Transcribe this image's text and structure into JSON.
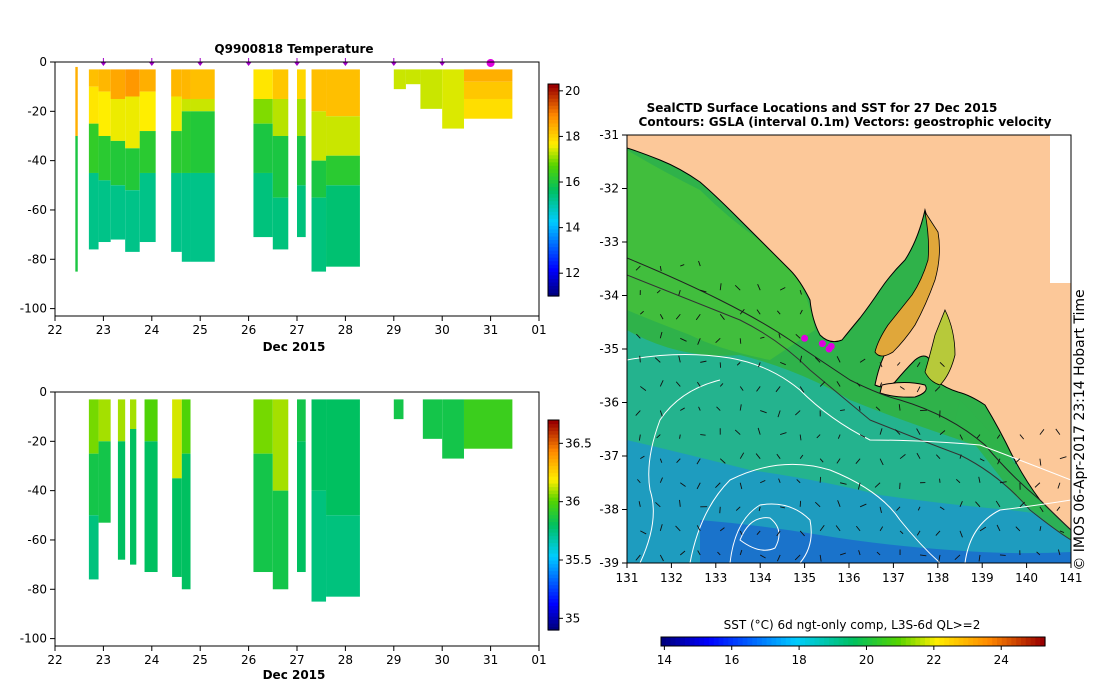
{
  "chart_data": [
    {
      "type": "heatmap",
      "id": "temp_section",
      "title": "Q9900818  Temperature",
      "xlabel": "Dec 2015",
      "ylabel": "",
      "x_ticks": [
        "22",
        "23",
        "24",
        "25",
        "26",
        "27",
        "28",
        "29",
        "30",
        "31",
        "01"
      ],
      "xlim": [
        22,
        32
      ],
      "y_ticks": [
        "0",
        "-20",
        "-40",
        "-60",
        "-80",
        "-100"
      ],
      "ylim": [
        -103,
        0
      ],
      "colorbar_ticks": [
        "12",
        "14",
        "16",
        "18",
        "20"
      ],
      "colorbar_range": [
        11,
        20.3
      ],
      "profile_markers": [
        23,
        24,
        25,
        26,
        27,
        28,
        29,
        30
      ],
      "highlight_marker": 31,
      "profiles": [
        {
          "x0": 22.42,
          "x1": 22.47,
          "dmin": -2,
          "dmax": -85,
          "layers": [
            {
              "to": -30,
              "v": 18.5
            },
            {
              "to": -85,
              "v": 16.0
            }
          ]
        },
        {
          "x0": 22.7,
          "x1": 22.9,
          "dmin": -3,
          "dmax": -76,
          "layers": [
            {
              "to": -10,
              "v": 18.3
            },
            {
              "to": -25,
              "v": 17.8
            },
            {
              "to": -45,
              "v": 16.3
            },
            {
              "to": -76,
              "v": 15.3
            }
          ]
        },
        {
          "x0": 22.9,
          "x1": 23.15,
          "dmin": -3,
          "dmax": -73,
          "layers": [
            {
              "to": -12,
              "v": 18.4
            },
            {
              "to": -30,
              "v": 17.7
            },
            {
              "to": -48,
              "v": 16.2
            },
            {
              "to": -73,
              "v": 15.3
            }
          ]
        },
        {
          "x0": 23.15,
          "x1": 23.45,
          "dmin": -3,
          "dmax": -72,
          "layers": [
            {
              "to": -15,
              "v": 18.6
            },
            {
              "to": -32,
              "v": 17.6
            },
            {
              "to": -50,
              "v": 16.1
            },
            {
              "to": -72,
              "v": 15.3
            }
          ]
        },
        {
          "x0": 23.45,
          "x1": 23.75,
          "dmin": -3,
          "dmax": -77,
          "layers": [
            {
              "to": -14,
              "v": 18.8
            },
            {
              "to": -35,
              "v": 17.6
            },
            {
              "to": -52,
              "v": 16.1
            },
            {
              "to": -77,
              "v": 15.3
            }
          ]
        },
        {
          "x0": 23.75,
          "x1": 24.08,
          "dmin": -3,
          "dmax": -73,
          "layers": [
            {
              "to": -12,
              "v": 18.5
            },
            {
              "to": -28,
              "v": 17.7
            },
            {
              "to": -45,
              "v": 16.2
            },
            {
              "to": -73,
              "v": 15.3
            }
          ]
        },
        {
          "x0": 24.4,
          "x1": 24.62,
          "dmin": -3,
          "dmax": -77,
          "layers": [
            {
              "to": -14,
              "v": 18.4
            },
            {
              "to": -28,
              "v": 17.6
            },
            {
              "to": -45,
              "v": 16.2
            },
            {
              "to": -77,
              "v": 15.3
            }
          ]
        },
        {
          "x0": 24.62,
          "x1": 24.8,
          "dmin": -3,
          "dmax": -81,
          "layers": [
            {
              "to": -15,
              "v": 18.4
            },
            {
              "to": -20,
              "v": 17.4
            },
            {
              "to": -45,
              "v": 16.2
            },
            {
              "to": -81,
              "v": 15.3
            }
          ]
        },
        {
          "x0": 24.8,
          "x1": 25.3,
          "dmin": -3,
          "dmax": -81,
          "layers": [
            {
              "to": -15,
              "v": 18.3
            },
            {
              "to": -20,
              "v": 17.4
            },
            {
              "to": -45,
              "v": 16.1
            },
            {
              "to": -81,
              "v": 15.3
            }
          ]
        },
        {
          "x0": 26.1,
          "x1": 26.5,
          "dmin": -3,
          "dmax": -71,
          "layers": [
            {
              "to": -15,
              "v": 17.8
            },
            {
              "to": -25,
              "v": 17.0
            },
            {
              "to": -45,
              "v": 16.0
            },
            {
              "to": -71,
              "v": 15.4
            }
          ]
        },
        {
          "x0": 26.5,
          "x1": 26.82,
          "dmin": -3,
          "dmax": -76,
          "layers": [
            {
              "to": -15,
              "v": 18.2
            },
            {
              "to": -30,
              "v": 17.3
            },
            {
              "to": -55,
              "v": 16.0
            },
            {
              "to": -76,
              "v": 15.4
            }
          ]
        },
        {
          "x0": 27.0,
          "x1": 27.18,
          "dmin": -3,
          "dmax": -71,
          "layers": [
            {
              "to": -15,
              "v": 18.0
            },
            {
              "to": -30,
              "v": 17.2
            },
            {
              "to": -50,
              "v": 16.0
            },
            {
              "to": -71,
              "v": 15.4
            }
          ]
        },
        {
          "x0": 27.3,
          "x1": 27.6,
          "dmin": -3,
          "dmax": -85,
          "layers": [
            {
              "to": -20,
              "v": 18.3
            },
            {
              "to": -40,
              "v": 17.4
            },
            {
              "to": -55,
              "v": 16.0
            },
            {
              "to": -85,
              "v": 15.4
            }
          ]
        },
        {
          "x0": 27.6,
          "x1": 28.3,
          "dmin": -3,
          "dmax": -83,
          "layers": [
            {
              "to": -22,
              "v": 18.3
            },
            {
              "to": -38,
              "v": 17.4
            },
            {
              "to": -50,
              "v": 16.2
            },
            {
              "to": -83,
              "v": 15.5
            }
          ]
        },
        {
          "x0": 29.0,
          "x1": 29.25,
          "dmin": -3,
          "dmax": -11,
          "layers": [
            {
              "to": -11,
              "v": 17.4
            }
          ]
        },
        {
          "x0": 29.25,
          "x1": 29.55,
          "dmin": -3,
          "dmax": -9,
          "layers": [
            {
              "to": -9,
              "v": 17.4
            }
          ]
        },
        {
          "x0": 29.55,
          "x1": 30.0,
          "dmin": -3,
          "dmax": -19,
          "layers": [
            {
              "to": -19,
              "v": 17.4
            }
          ]
        },
        {
          "x0": 30.0,
          "x1": 30.45,
          "dmin": -3,
          "dmax": -27,
          "layers": [
            {
              "to": -27,
              "v": 17.5
            }
          ]
        },
        {
          "x0": 30.45,
          "x1": 31.45,
          "dmin": -3,
          "dmax": -23,
          "layers": [
            {
              "to": -8,
              "v": 18.5
            },
            {
              "to": -15,
              "v": 18.2
            },
            {
              "to": -23,
              "v": 17.9
            }
          ]
        }
      ]
    },
    {
      "type": "heatmap",
      "id": "salinity_section",
      "title": "",
      "xlabel": "Dec 2015",
      "ylabel": "",
      "x_ticks": [
        "22",
        "23",
        "24",
        "25",
        "26",
        "27",
        "28",
        "29",
        "30",
        "31",
        "01"
      ],
      "xlim": [
        22,
        32
      ],
      "y_ticks": [
        "0",
        "-20",
        "-40",
        "-60",
        "-80",
        "-100"
      ],
      "ylim": [
        -103,
        0
      ],
      "colorbar_ticks": [
        "35",
        "35.5",
        "36",
        "36.5"
      ],
      "colorbar_range": [
        34.9,
        36.7
      ],
      "profiles": [
        {
          "x0": 22.7,
          "x1": 22.9,
          "dmin": -3,
          "dmax": -76,
          "layers": [
            {
              "to": -25,
              "v": 36.05
            },
            {
              "to": -50,
              "v": 35.85
            },
            {
              "to": -76,
              "v": 35.75
            }
          ]
        },
        {
          "x0": 22.9,
          "x1": 23.15,
          "dmin": -3,
          "dmax": -53,
          "layers": [
            {
              "to": -20,
              "v": 36.1
            },
            {
              "to": -53,
              "v": 35.85
            }
          ]
        },
        {
          "x0": 23.3,
          "x1": 23.45,
          "dmin": -3,
          "dmax": -68,
          "layers": [
            {
              "to": -20,
              "v": 36.1
            },
            {
              "to": -68,
              "v": 35.8
            }
          ]
        },
        {
          "x0": 23.55,
          "x1": 23.68,
          "dmin": -3,
          "dmax": -70,
          "layers": [
            {
              "to": -15,
              "v": 36.1
            },
            {
              "to": -70,
              "v": 35.8
            }
          ]
        },
        {
          "x0": 23.85,
          "x1": 24.12,
          "dmin": -3,
          "dmax": -73,
          "layers": [
            {
              "to": -20,
              "v": 36.0
            },
            {
              "to": -73,
              "v": 35.8
            }
          ]
        },
        {
          "x0": 24.42,
          "x1": 24.62,
          "dmin": -3,
          "dmax": -75,
          "layers": [
            {
              "to": -35,
              "v": 36.15
            },
            {
              "to": -75,
              "v": 35.8
            }
          ]
        },
        {
          "x0": 24.62,
          "x1": 24.8,
          "dmin": -3,
          "dmax": -80,
          "layers": [
            {
              "to": -25,
              "v": 36.0
            },
            {
              "to": -80,
              "v": 35.8
            }
          ]
        },
        {
          "x0": 26.1,
          "x1": 26.5,
          "dmin": -3,
          "dmax": -73,
          "layers": [
            {
              "to": -25,
              "v": 36.05
            },
            {
              "to": -73,
              "v": 35.85
            }
          ]
        },
        {
          "x0": 26.5,
          "x1": 26.82,
          "dmin": -3,
          "dmax": -80,
          "layers": [
            {
              "to": -40,
              "v": 36.1
            },
            {
              "to": -80,
              "v": 35.85
            }
          ]
        },
        {
          "x0": 27.0,
          "x1": 27.18,
          "dmin": -3,
          "dmax": -73,
          "layers": [
            {
              "to": -20,
              "v": 35.85
            },
            {
              "to": -73,
              "v": 35.8
            }
          ]
        },
        {
          "x0": 27.3,
          "x1": 27.6,
          "dmin": -3,
          "dmax": -85,
          "layers": [
            {
              "to": -40,
              "v": 35.8
            },
            {
              "to": -85,
              "v": 35.75
            }
          ]
        },
        {
          "x0": 27.6,
          "x1": 28.3,
          "dmin": -3,
          "dmax": -83,
          "layers": [
            {
              "to": -50,
              "v": 35.8
            },
            {
              "to": -83,
              "v": 35.75
            }
          ]
        },
        {
          "x0": 29.0,
          "x1": 29.2,
          "dmin": -3,
          "dmax": -11,
          "layers": [
            {
              "to": -11,
              "v": 35.85
            }
          ]
        },
        {
          "x0": 29.6,
          "x1": 30.0,
          "dmin": -3,
          "dmax": -19,
          "layers": [
            {
              "to": -19,
              "v": 35.85
            }
          ]
        },
        {
          "x0": 30.0,
          "x1": 30.45,
          "dmin": -3,
          "dmax": -27,
          "layers": [
            {
              "to": -27,
              "v": 35.85
            }
          ]
        },
        {
          "x0": 30.45,
          "x1": 31.45,
          "dmin": -3,
          "dmax": -23,
          "layers": [
            {
              "to": -23,
              "v": 35.95
            }
          ]
        }
      ]
    },
    {
      "type": "heatmap",
      "id": "sst_map",
      "title": "SealCTD Surface Locations and SST for 27 Dec 2015",
      "subtitle": "Contours: GSLA (interval 0.1m) Vectors: geostrophic velocity",
      "xlabel": "",
      "ylabel": "",
      "x_ticks": [
        "131",
        "132",
        "133",
        "134",
        "135",
        "136",
        "137",
        "138",
        "139",
        "140",
        "141"
      ],
      "xlim": [
        131,
        141
      ],
      "y_ticks": [
        "-31",
        "-32",
        "-33",
        "-34",
        "-35",
        "-36",
        "-37",
        "-38",
        "-39"
      ],
      "ylim": [
        -39,
        -31
      ],
      "colorbar_label": "SST (°C) 6d ngt-only comp, L3S-6d QL>=2",
      "colorbar_ticks": [
        "14",
        "16",
        "18",
        "20",
        "22",
        "24"
      ],
      "colorbar_range": [
        13.9,
        25.3
      ],
      "seal_locations": [
        [
          135.0,
          -34.8
        ],
        [
          135.4,
          -34.9
        ],
        [
          135.55,
          -35.0
        ],
        [
          135.6,
          -34.95
        ]
      ],
      "side_label": "© IMOS 06-Apr-2017 23:14 Hobart Time"
    }
  ]
}
